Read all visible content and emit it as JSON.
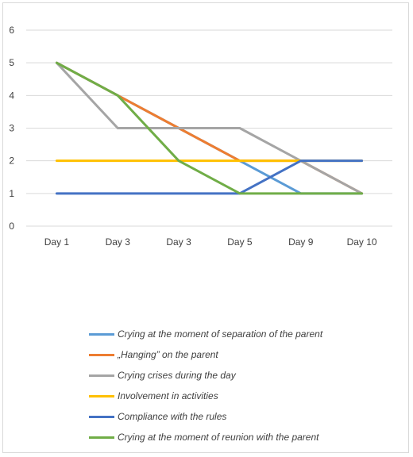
{
  "chart_data": {
    "type": "line",
    "categories": [
      "Day 1",
      "Day 3",
      "Day 3",
      "Day 5",
      "Day 9",
      "Day 10"
    ],
    "ylim": [
      0,
      6
    ],
    "yticks": [
      "0",
      "1",
      "2",
      "3",
      "4",
      "5",
      "6"
    ],
    "grid": true,
    "legend_position": "bottom",
    "series": [
      {
        "name": "Crying at the moment of separation of the parent",
        "color": "#5b9bd5",
        "values": [
          5,
          4,
          3,
          2,
          1,
          1
        ]
      },
      {
        "name": "„Hanging” on the parent",
        "color": "#ed7d31",
        "values": [
          5,
          4,
          3,
          2,
          2,
          1
        ]
      },
      {
        "name": "Crying crises during the day",
        "color": "#a5a5a5",
        "values": [
          5,
          3,
          3,
          3,
          2,
          1
        ]
      },
      {
        "name": "Involvement in activities",
        "color": "#ffc000",
        "values": [
          2,
          2,
          2,
          2,
          2,
          2
        ]
      },
      {
        "name": "Compliance with the rules",
        "color": "#4472c4",
        "values": [
          1,
          1,
          1,
          1,
          2,
          2
        ]
      },
      {
        "name": "Crying at the moment of reunion with the parent",
        "color": "#70ad47",
        "values": [
          5,
          4,
          2,
          1,
          1,
          1
        ]
      }
    ]
  }
}
